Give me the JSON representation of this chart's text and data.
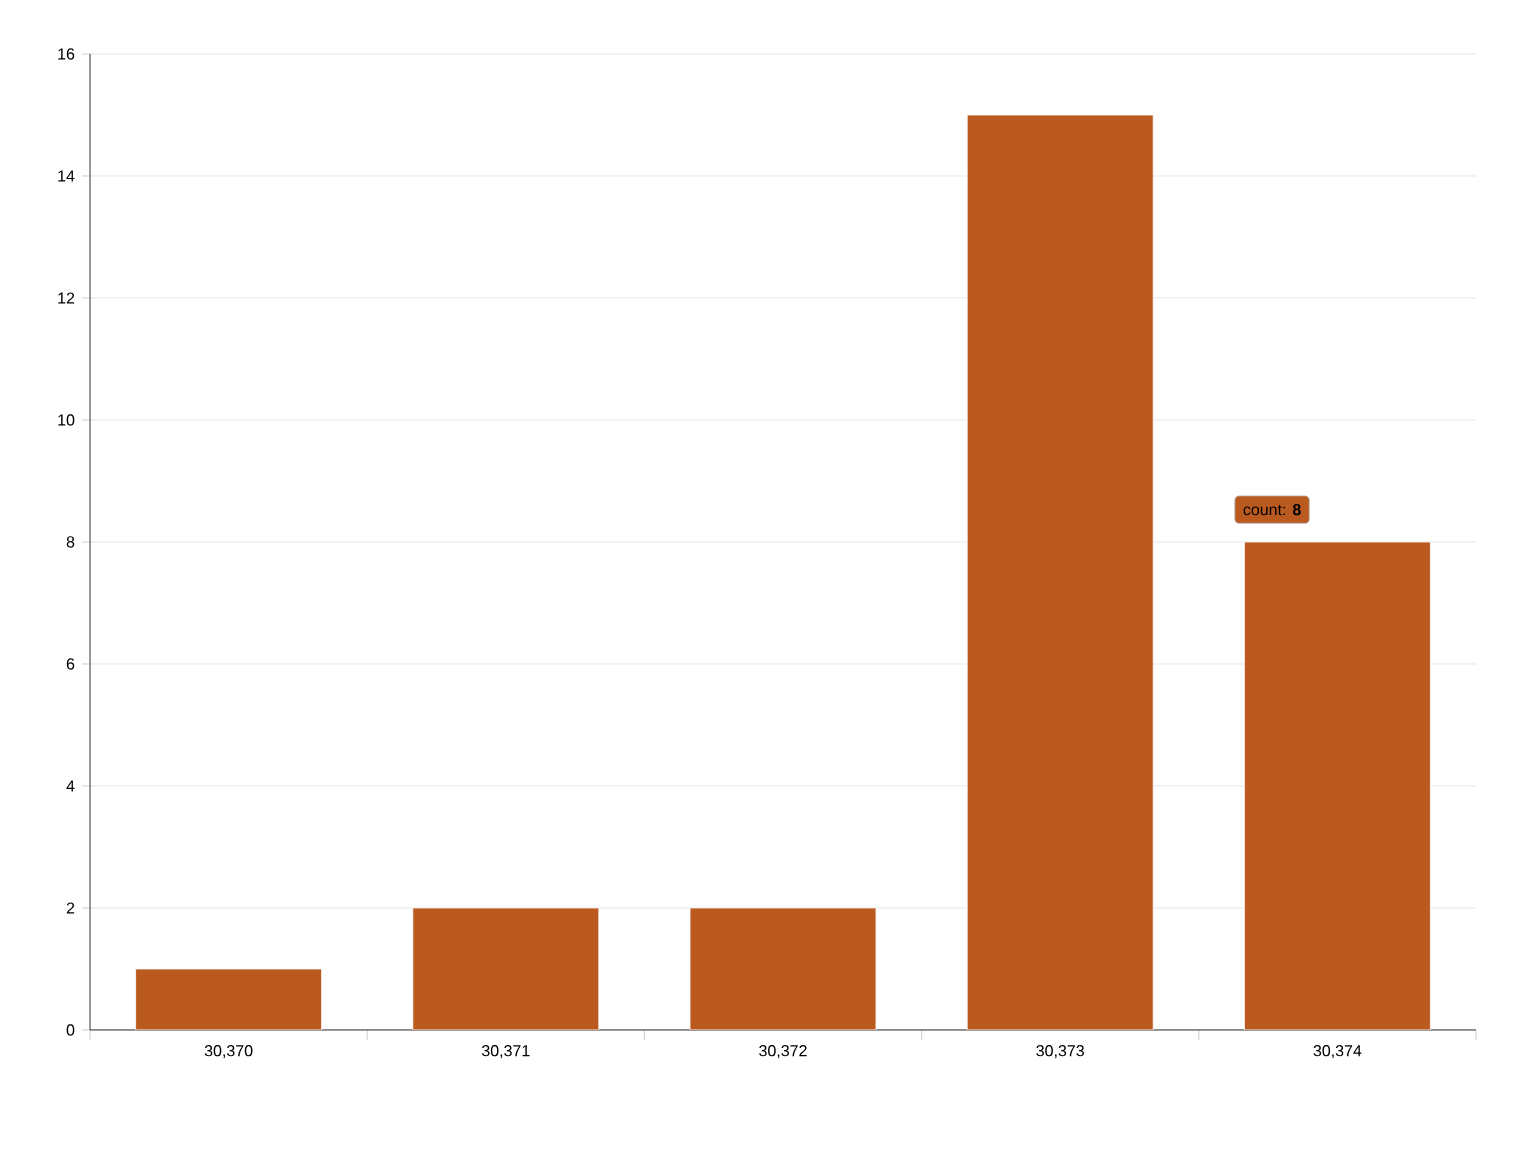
{
  "chart_data": {
    "type": "bar",
    "categories": [
      "30,370",
      "30,371",
      "30,372",
      "30,373",
      "30,374"
    ],
    "values": [
      1,
      2,
      2,
      15,
      8
    ],
    "color": "#bb5a1e",
    "ylim": [
      0,
      16
    ],
    "yticks": [
      0,
      2,
      4,
      6,
      8,
      10,
      12,
      14,
      16
    ],
    "grid": "y",
    "annotations": [
      {
        "text": "count: **8**",
        "x": "30,374",
        "y": 8
      }
    ]
  }
}
